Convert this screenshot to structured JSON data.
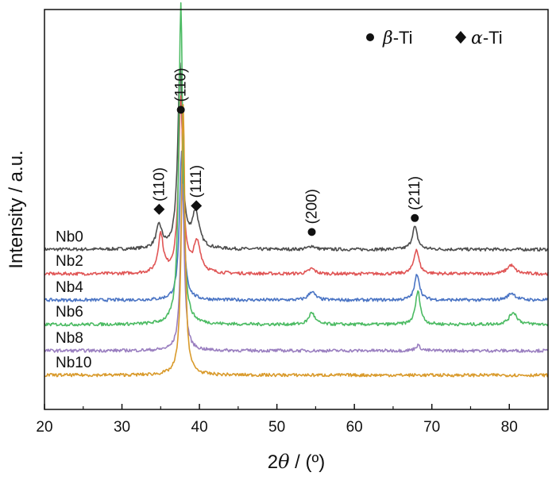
{
  "chart_data": {
    "type": "line",
    "xlabel": {
      "prefix": "2",
      "symbol": "θ",
      "suffix": " / (º)"
    },
    "ylabel": "Intensity / a.u.",
    "xlim": [
      20,
      85
    ],
    "xticks": [
      20,
      30,
      40,
      50,
      60,
      70,
      80
    ],
    "legend": {
      "position": "top-right",
      "items": [
        {
          "marker": "circle",
          "symbol": "β",
          "text": "-Ti"
        },
        {
          "marker": "diamond",
          "symbol": "α",
          "text": "-Ti"
        }
      ]
    },
    "series": [
      {
        "name": "Nb0",
        "color": "#4d4d4d",
        "baseline": 0.78,
        "peaks": [
          [
            34.8,
            0.13,
            0.45
          ],
          [
            37.5,
            1.05,
            0.35
          ],
          [
            39.5,
            0.2,
            0.55
          ],
          [
            54.5,
            0.02,
            0.5
          ],
          [
            67.8,
            0.13,
            0.4
          ]
        ]
      },
      {
        "name": "Nb2",
        "color": "#e05555",
        "baseline": 0.64,
        "peaks": [
          [
            35.0,
            0.22,
            0.4
          ],
          [
            37.6,
            1.0,
            0.35
          ],
          [
            39.7,
            0.17,
            0.55
          ],
          [
            54.5,
            0.03,
            0.5
          ],
          [
            68.0,
            0.14,
            0.4
          ],
          [
            80.2,
            0.05,
            0.6
          ]
        ]
      },
      {
        "name": "Nb4",
        "color": "#4a74c4",
        "baseline": 0.49,
        "peaks": [
          [
            37.7,
            0.85,
            0.32
          ],
          [
            54.5,
            0.05,
            0.5
          ],
          [
            68.1,
            0.15,
            0.38
          ],
          [
            80.3,
            0.04,
            0.6
          ]
        ]
      },
      {
        "name": "Nb6",
        "color": "#4cbb63",
        "baseline": 0.35,
        "peaks": [
          [
            37.6,
            1.85,
            0.3
          ],
          [
            54.5,
            0.07,
            0.45
          ],
          [
            68.2,
            0.19,
            0.38
          ],
          [
            80.5,
            0.07,
            0.6
          ]
        ]
      },
      {
        "name": "Nb8",
        "color": "#9a7fc0",
        "baseline": 0.2,
        "peaks": [
          [
            37.8,
            0.95,
            0.3
          ],
          [
            68.2,
            0.03,
            0.4
          ]
        ]
      },
      {
        "name": "Nb10",
        "color": "#d99a2b",
        "baseline": 0.06,
        "peaks": [
          [
            37.9,
            1.55,
            0.27
          ]
        ]
      }
    ],
    "annotations": [
      {
        "text": "(110)",
        "marker": "circle",
        "x": 37.6,
        "level": 1.58
      },
      {
        "text": "(110)",
        "marker": "diamond",
        "x": 34.8,
        "level": 1.01
      },
      {
        "text": "(111)",
        "marker": "diamond",
        "x": 39.6,
        "level": 1.03
      },
      {
        "text": "(200)",
        "marker": "circle",
        "x": 54.5,
        "level": 0.88
      },
      {
        "text": "(211)",
        "marker": "circle",
        "x": 67.8,
        "level": 0.96
      }
    ]
  }
}
